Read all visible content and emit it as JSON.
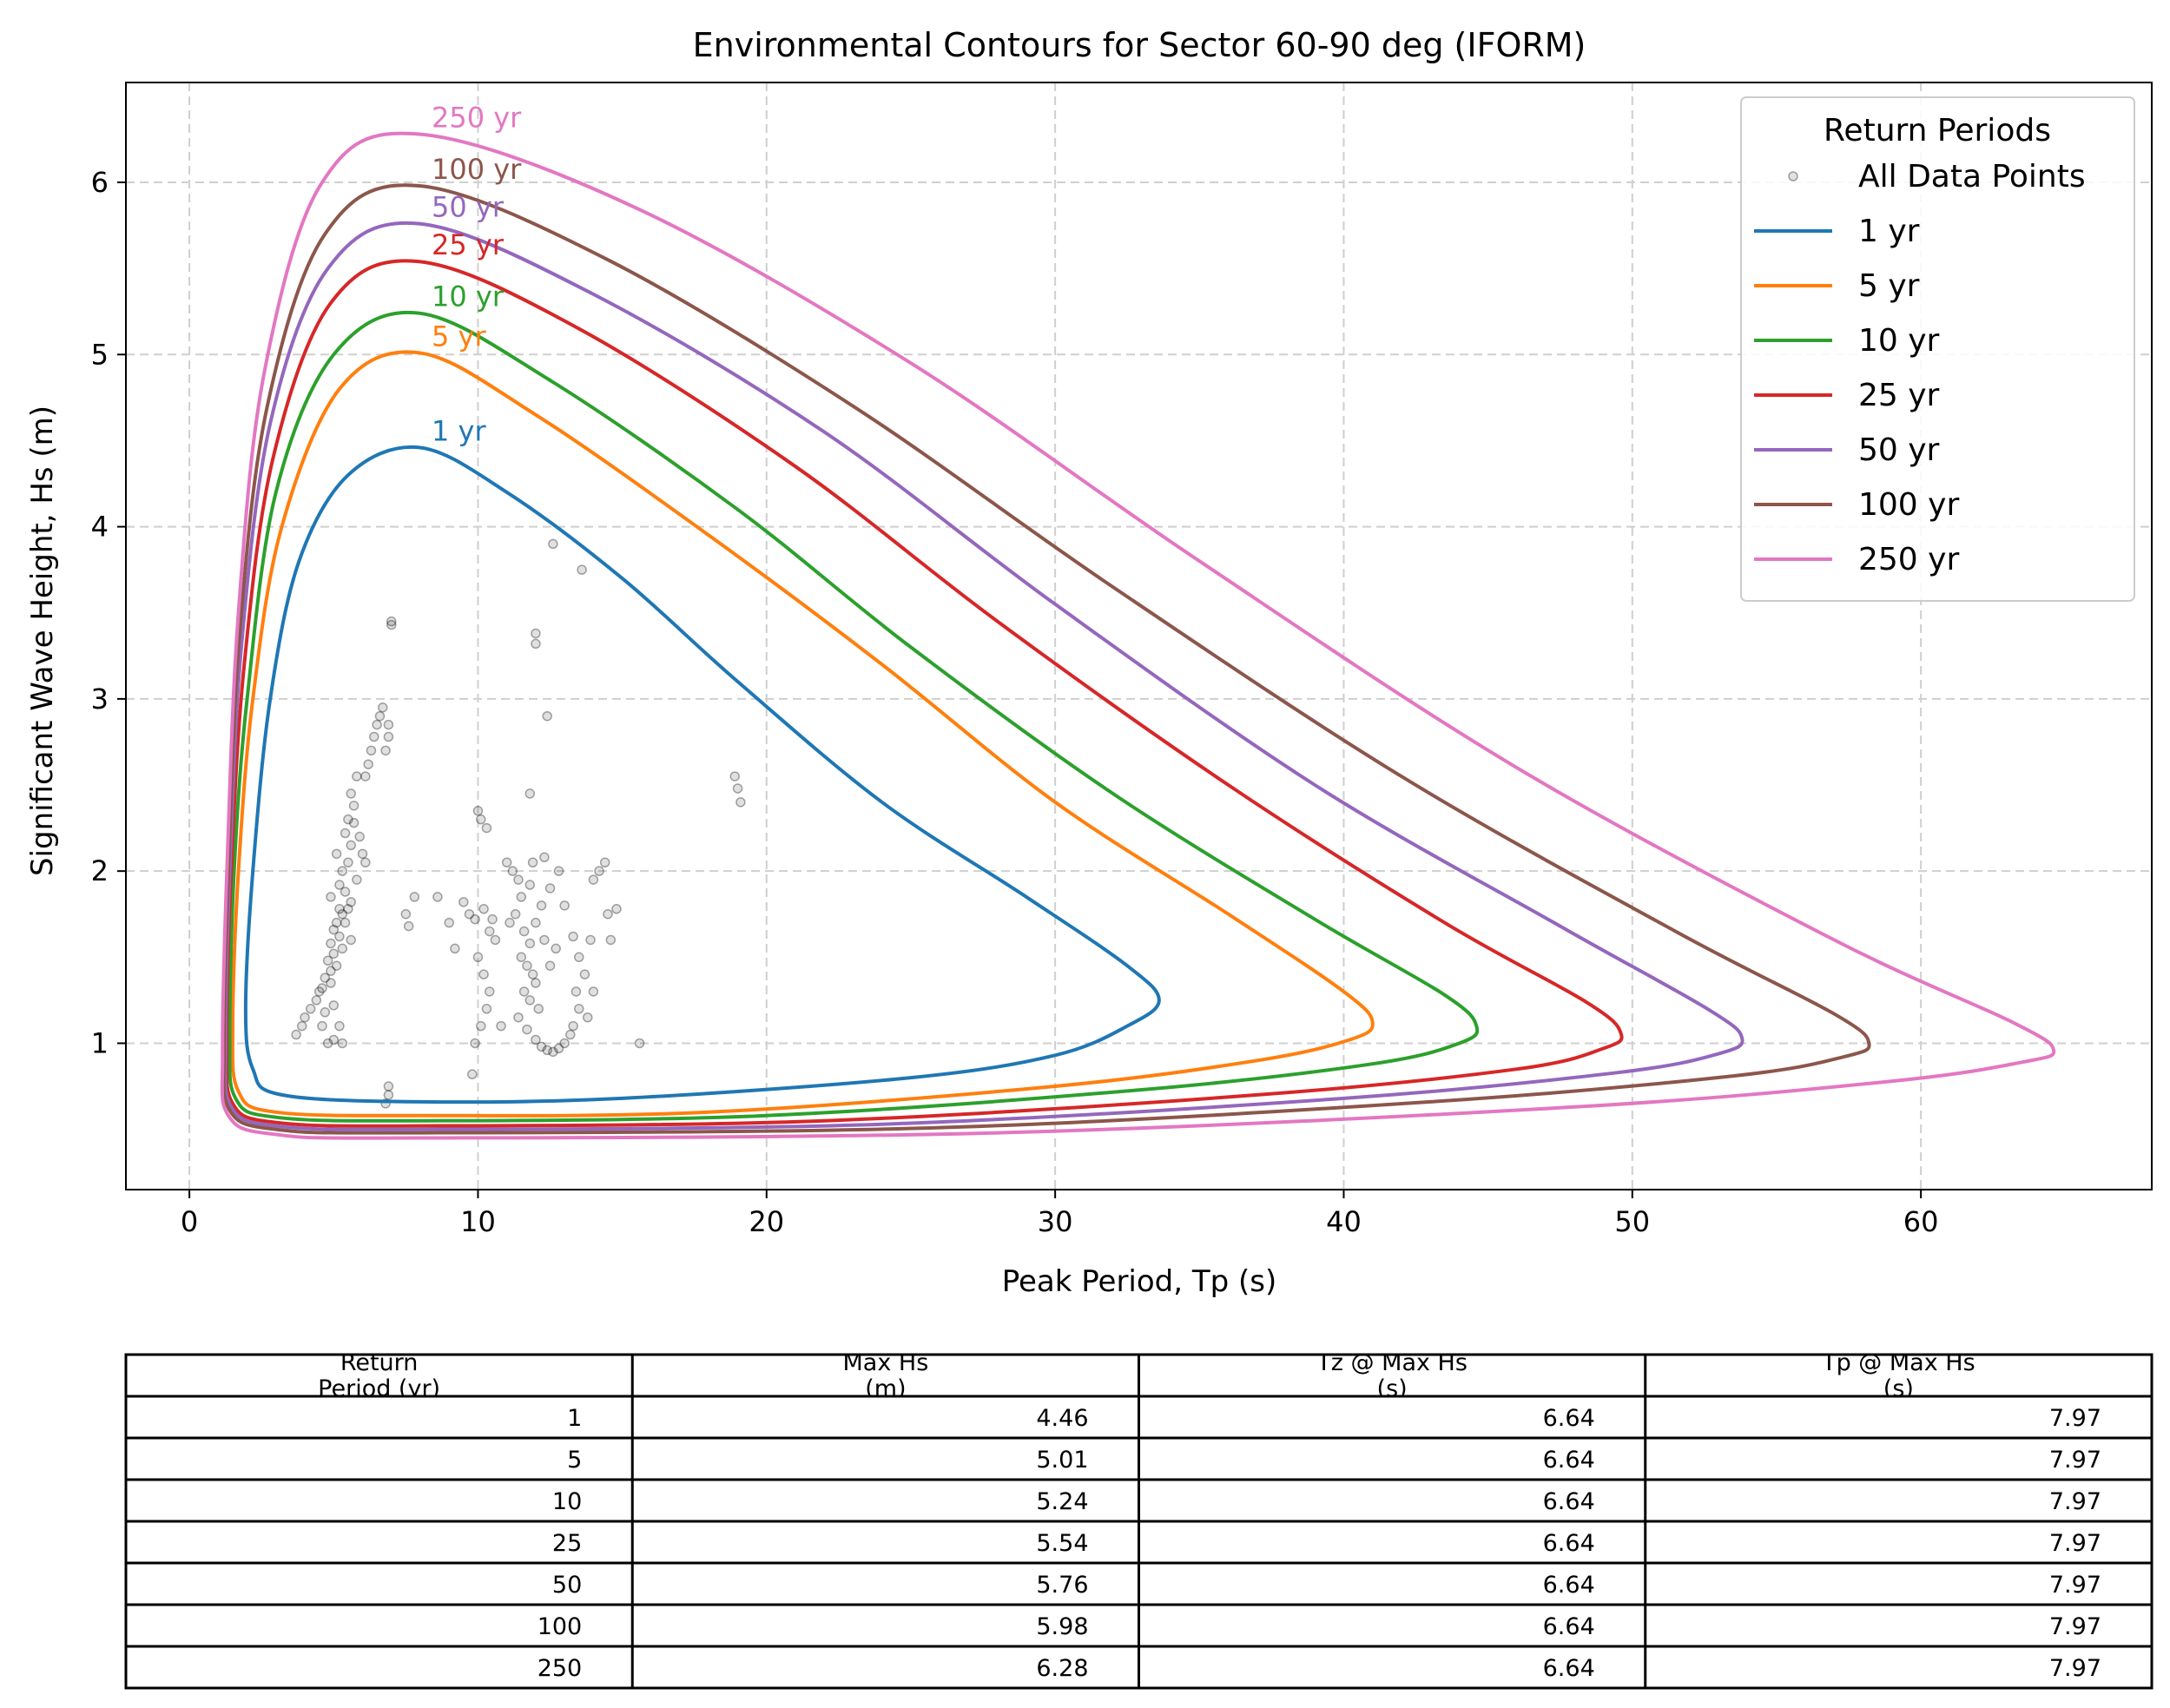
{
  "chart_data": {
    "type": "line",
    "title": "Environmental Contours for Sector 60-90 deg (IFORM)",
    "xlabel": "Peak Period, Tp (s)",
    "ylabel": "Significant Wave Height, Hs (m)",
    "xlim": [
      -2.2,
      68
    ],
    "ylim": [
      0.15,
      6.58
    ],
    "xticks": [
      0,
      10,
      20,
      30,
      40,
      50,
      60
    ],
    "yticks": [
      1,
      2,
      3,
      4,
      5,
      6
    ],
    "grid": true,
    "legend": {
      "title": "Return Periods",
      "position": "top-right",
      "entries": [
        "All Data Points",
        "1 yr",
        "5 yr",
        "10 yr",
        "25 yr",
        "50 yr",
        "100 yr",
        "250 yr"
      ]
    },
    "series": [
      {
        "name": "1 yr",
        "color": "#1f77b4",
        "label": "1 yr",
        "points": [
          [
            7.97,
            4.46
          ],
          [
            5.5,
            4.3
          ],
          [
            3.8,
            3.8
          ],
          [
            2.8,
            3.0
          ],
          [
            2.2,
            2.0
          ],
          [
            1.95,
            1.2
          ],
          [
            2.2,
            0.85
          ],
          [
            3.2,
            0.7
          ],
          [
            7.97,
            0.66
          ],
          [
            15,
            0.68
          ],
          [
            25,
            0.8
          ],
          [
            30,
            0.93
          ],
          [
            32.5,
            1.1
          ],
          [
            33.6,
            1.25
          ],
          [
            32.5,
            1.45
          ],
          [
            29,
            1.85
          ],
          [
            24,
            2.4
          ],
          [
            19,
            3.1
          ],
          [
            15,
            3.7
          ],
          [
            11,
            4.2
          ],
          [
            7.97,
            4.46
          ]
        ]
      },
      {
        "name": "5 yr",
        "color": "#ff7f0e",
        "label": "5 yr",
        "points": [
          [
            7.97,
            5.01
          ],
          [
            5.2,
            4.8
          ],
          [
            3.2,
            4.0
          ],
          [
            2.2,
            3.0
          ],
          [
            1.7,
            2.0
          ],
          [
            1.5,
            1.1
          ],
          [
            1.7,
            0.72
          ],
          [
            3.0,
            0.6
          ],
          [
            7.97,
            0.58
          ],
          [
            18,
            0.6
          ],
          [
            30,
            0.75
          ],
          [
            37,
            0.9
          ],
          [
            40.2,
            1.02
          ],
          [
            41,
            1.12
          ],
          [
            40,
            1.3
          ],
          [
            36,
            1.75
          ],
          [
            30,
            2.4
          ],
          [
            24,
            3.2
          ],
          [
            18,
            3.95
          ],
          [
            12,
            4.65
          ],
          [
            7.97,
            5.01
          ]
        ]
      },
      {
        "name": "10 yr",
        "color": "#2ca02c",
        "label": "10 yr",
        "points": [
          [
            7.97,
            5.24
          ],
          [
            5.0,
            5.0
          ],
          [
            3.0,
            4.2
          ],
          [
            2.0,
            3.0
          ],
          [
            1.55,
            2.0
          ],
          [
            1.4,
            1.05
          ],
          [
            1.6,
            0.68
          ],
          [
            3.0,
            0.57
          ],
          [
            7.97,
            0.55
          ],
          [
            20,
            0.58
          ],
          [
            33,
            0.73
          ],
          [
            41,
            0.88
          ],
          [
            44,
            1.0
          ],
          [
            44.6,
            1.1
          ],
          [
            43.5,
            1.28
          ],
          [
            39,
            1.72
          ],
          [
            32,
            2.45
          ],
          [
            25,
            3.3
          ],
          [
            19,
            4.1
          ],
          [
            12.5,
            4.85
          ],
          [
            7.97,
            5.24
          ]
        ]
      },
      {
        "name": "25 yr",
        "color": "#d62728",
        "label": "25 yr",
        "points": [
          [
            7.97,
            5.54
          ],
          [
            4.9,
            5.3
          ],
          [
            2.9,
            4.4
          ],
          [
            1.9,
            3.2
          ],
          [
            1.45,
            2.0
          ],
          [
            1.3,
            1.02
          ],
          [
            1.5,
            0.65
          ],
          [
            3.0,
            0.54
          ],
          [
            7.97,
            0.52
          ],
          [
            22,
            0.55
          ],
          [
            37,
            0.7
          ],
          [
            46,
            0.85
          ],
          [
            49,
            0.97
          ],
          [
            49.6,
            1.06
          ],
          [
            48.4,
            1.24
          ],
          [
            43.5,
            1.7
          ],
          [
            36,
            2.5
          ],
          [
            28,
            3.45
          ],
          [
            21,
            4.35
          ],
          [
            13.5,
            5.15
          ],
          [
            7.97,
            5.54
          ]
        ]
      },
      {
        "name": "50 yr",
        "color": "#9467bd",
        "label": "50 yr",
        "points": [
          [
            7.97,
            5.76
          ],
          [
            4.8,
            5.5
          ],
          [
            2.8,
            4.6
          ],
          [
            1.8,
            3.3
          ],
          [
            1.4,
            2.0
          ],
          [
            1.25,
            1.0
          ],
          [
            1.45,
            0.63
          ],
          [
            3.0,
            0.52
          ],
          [
            7.97,
            0.5
          ],
          [
            24,
            0.53
          ],
          [
            40,
            0.68
          ],
          [
            49.5,
            0.83
          ],
          [
            53,
            0.94
          ],
          [
            53.8,
            1.03
          ],
          [
            52.6,
            1.2
          ],
          [
            47.5,
            1.68
          ],
          [
            39,
            2.5
          ],
          [
            30,
            3.55
          ],
          [
            22,
            4.55
          ],
          [
            14,
            5.35
          ],
          [
            7.97,
            5.76
          ]
        ]
      },
      {
        "name": "100 yr",
        "color": "#8c564b",
        "label": "100 yr",
        "points": [
          [
            7.97,
            5.98
          ],
          [
            4.7,
            5.7
          ],
          [
            2.7,
            4.7
          ],
          [
            1.75,
            3.4
          ],
          [
            1.35,
            2.0
          ],
          [
            1.2,
            0.98
          ],
          [
            1.4,
            0.61
          ],
          [
            3.0,
            0.5
          ],
          [
            7.97,
            0.48
          ],
          [
            26,
            0.51
          ],
          [
            43,
            0.66
          ],
          [
            53.5,
            0.81
          ],
          [
            57.3,
            0.92
          ],
          [
            58.2,
            1.0
          ],
          [
            57,
            1.17
          ],
          [
            51.5,
            1.65
          ],
          [
            42,
            2.55
          ],
          [
            32,
            3.65
          ],
          [
            23,
            4.7
          ],
          [
            14.5,
            5.55
          ],
          [
            7.97,
            5.98
          ]
        ]
      },
      {
        "name": "250 yr",
        "color": "#e377c2",
        "label": "250 yr",
        "points": [
          [
            7.97,
            6.28
          ],
          [
            4.6,
            6.0
          ],
          [
            2.6,
            4.9
          ],
          [
            1.7,
            3.5
          ],
          [
            1.3,
            2.0
          ],
          [
            1.15,
            0.95
          ],
          [
            1.35,
            0.58
          ],
          [
            3.0,
            0.47
          ],
          [
            7.97,
            0.45
          ],
          [
            28,
            0.48
          ],
          [
            48,
            0.63
          ],
          [
            59,
            0.78
          ],
          [
            63.5,
            0.89
          ],
          [
            64.6,
            0.96
          ],
          [
            63.2,
            1.12
          ],
          [
            57,
            1.6
          ],
          [
            46,
            2.6
          ],
          [
            35,
            3.8
          ],
          [
            25,
            4.95
          ],
          [
            15.5,
            5.85
          ],
          [
            7.97,
            6.28
          ]
        ]
      }
    ],
    "scatter": {
      "name": "All Data Points",
      "color": "#000000",
      "points": [
        [
          7.0,
          3.45
        ],
        [
          7.0,
          3.43
        ],
        [
          6.7,
          2.95
        ],
        [
          6.6,
          2.9
        ],
        [
          6.5,
          2.85
        ],
        [
          6.4,
          2.78
        ],
        [
          6.3,
          2.7
        ],
        [
          6.2,
          2.62
        ],
        [
          6.1,
          2.55
        ],
        [
          6.9,
          2.85
        ],
        [
          6.9,
          2.78
        ],
        [
          6.8,
          2.7
        ],
        [
          5.8,
          2.55
        ],
        [
          5.6,
          2.45
        ],
        [
          5.7,
          2.38
        ],
        [
          5.5,
          2.3
        ],
        [
          5.4,
          2.22
        ],
        [
          5.6,
          2.15
        ],
        [
          5.5,
          2.05
        ],
        [
          5.3,
          2.0
        ],
        [
          5.2,
          1.92
        ],
        [
          5.4,
          1.88
        ],
        [
          5.6,
          1.82
        ],
        [
          5.5,
          1.78
        ],
        [
          5.3,
          1.75
        ],
        [
          5.1,
          1.7
        ],
        [
          5.0,
          1.66
        ],
        [
          5.2,
          1.62
        ],
        [
          4.9,
          1.58
        ],
        [
          5.0,
          1.52
        ],
        [
          4.8,
          1.48
        ],
        [
          4.9,
          1.42
        ],
        [
          4.7,
          1.38
        ],
        [
          4.6,
          1.32
        ],
        [
          4.5,
          1.3
        ],
        [
          4.4,
          1.25
        ],
        [
          4.2,
          1.2
        ],
        [
          4.0,
          1.15
        ],
        [
          3.9,
          1.1
        ],
        [
          3.7,
          1.05
        ],
        [
          5.2,
          1.1
        ],
        [
          5.0,
          1.02
        ],
        [
          5.3,
          1.0
        ],
        [
          4.8,
          1.0
        ],
        [
          6.0,
          2.1
        ],
        [
          6.1,
          2.05
        ],
        [
          5.8,
          1.95
        ],
        [
          5.9,
          2.2
        ],
        [
          5.7,
          2.28
        ],
        [
          5.1,
          2.1
        ],
        [
          4.9,
          1.85
        ],
        [
          5.2,
          1.78
        ],
        [
          5.4,
          1.7
        ],
        [
          5.6,
          1.6
        ],
        [
          5.3,
          1.55
        ],
        [
          5.1,
          1.45
        ],
        [
          4.9,
          1.35
        ],
        [
          5.0,
          1.22
        ],
        [
          4.7,
          1.18
        ],
        [
          4.6,
          1.1
        ],
        [
          6.9,
          0.75
        ],
        [
          6.9,
          0.7
        ],
        [
          6.8,
          0.65
        ],
        [
          7.5,
          1.75
        ],
        [
          7.6,
          1.68
        ],
        [
          7.8,
          1.85
        ],
        [
          8.6,
          1.85
        ],
        [
          9.0,
          1.7
        ],
        [
          9.2,
          1.55
        ],
        [
          9.5,
          1.82
        ],
        [
          9.7,
          1.75
        ],
        [
          9.9,
          1.72
        ],
        [
          10.0,
          2.35
        ],
        [
          10.1,
          2.3
        ],
        [
          10.3,
          2.25
        ],
        [
          10.2,
          1.78
        ],
        [
          10.4,
          1.65
        ],
        [
          10.5,
          1.72
        ],
        [
          10.6,
          1.6
        ],
        [
          10.0,
          1.5
        ],
        [
          10.2,
          1.4
        ],
        [
          10.4,
          1.3
        ],
        [
          10.3,
          1.2
        ],
        [
          10.1,
          1.1
        ],
        [
          9.9,
          1.0
        ],
        [
          9.8,
          0.82
        ],
        [
          10.8,
          1.1
        ],
        [
          11.0,
          2.05
        ],
        [
          11.2,
          2.0
        ],
        [
          11.4,
          1.95
        ],
        [
          11.5,
          1.85
        ],
        [
          11.3,
          1.75
        ],
        [
          11.1,
          1.7
        ],
        [
          11.6,
          1.65
        ],
        [
          11.8,
          1.58
        ],
        [
          11.5,
          1.5
        ],
        [
          11.7,
          1.45
        ],
        [
          11.9,
          1.4
        ],
        [
          12.0,
          1.35
        ],
        [
          11.6,
          1.3
        ],
        [
          11.8,
          1.25
        ],
        [
          12.1,
          1.2
        ],
        [
          11.4,
          1.15
        ],
        [
          11.7,
          1.08
        ],
        [
          12.0,
          1.02
        ],
        [
          12.2,
          0.98
        ],
        [
          12.4,
          0.96
        ],
        [
          12.6,
          0.95
        ],
        [
          12.8,
          0.97
        ],
        [
          13.0,
          1.0
        ],
        [
          13.2,
          1.05
        ],
        [
          13.3,
          1.1
        ],
        [
          13.5,
          1.2
        ],
        [
          13.4,
          1.3
        ],
        [
          12.5,
          1.45
        ],
        [
          12.7,
          1.55
        ],
        [
          12.3,
          1.6
        ],
        [
          12.0,
          1.7
        ],
        [
          12.2,
          1.8
        ],
        [
          12.5,
          1.9
        ],
        [
          11.8,
          1.92
        ],
        [
          11.9,
          2.05
        ],
        [
          12.3,
          2.08
        ],
        [
          12.0,
          3.38
        ],
        [
          12.0,
          3.32
        ],
        [
          12.4,
          2.9
        ],
        [
          12.6,
          3.9
        ],
        [
          13.6,
          3.75
        ],
        [
          11.8,
          2.45
        ],
        [
          12.8,
          2.0
        ],
        [
          13.0,
          1.8
        ],
        [
          13.3,
          1.62
        ],
        [
          13.5,
          1.5
        ],
        [
          13.7,
          1.4
        ],
        [
          14.0,
          1.95
        ],
        [
          14.2,
          2.0
        ],
        [
          14.4,
          2.05
        ],
        [
          14.5,
          1.75
        ],
        [
          14.6,
          1.6
        ],
        [
          14.8,
          1.78
        ],
        [
          15.6,
          1.0
        ],
        [
          18.9,
          2.55
        ],
        [
          19.0,
          2.48
        ],
        [
          19.1,
          2.4
        ],
        [
          13.8,
          1.15
        ],
        [
          14.0,
          1.3
        ],
        [
          13.9,
          1.6
        ]
      ]
    },
    "table": {
      "headers": [
        "Return\nPeriod (yr)",
        "Max Hs\n(m)",
        "Tz @ Max Hs\n(s)",
        "Tp @ Max Hs\n(s)"
      ],
      "rows": [
        [
          "1",
          "4.46",
          "6.64",
          "7.97"
        ],
        [
          "5",
          "5.01",
          "6.64",
          "7.97"
        ],
        [
          "10",
          "5.24",
          "6.64",
          "7.97"
        ],
        [
          "25",
          "5.54",
          "6.64",
          "7.97"
        ],
        [
          "50",
          "5.76",
          "6.64",
          "7.97"
        ],
        [
          "100",
          "5.98",
          "6.64",
          "7.97"
        ],
        [
          "250",
          "6.28",
          "6.64",
          "7.97"
        ]
      ]
    }
  }
}
